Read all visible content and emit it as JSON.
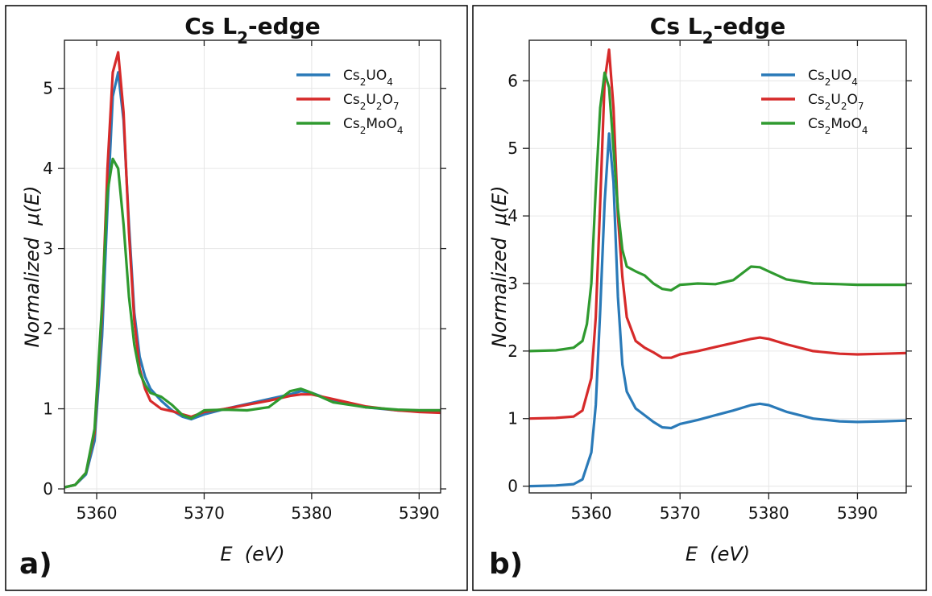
{
  "chart_data": [
    {
      "type": "line",
      "panel": "a)",
      "title": "Cs L₂-edge",
      "xlabel": "E  (eV)",
      "ylabel": "Normalized  μ(E)",
      "xlim": [
        5357,
        5392
      ],
      "ylim": [
        -0.05,
        5.6
      ],
      "xticks": [
        5360,
        5370,
        5380,
        5390
      ],
      "yticks": [
        0,
        1,
        2,
        3,
        4,
        5
      ],
      "grid": true,
      "legend": "top-right",
      "series": [
        {
          "name": "Cs₂UO₄",
          "color": "#2a7ab8",
          "x": [
            5357,
            5358,
            5359,
            5359.8,
            5360.5,
            5361,
            5361.5,
            5362,
            5362.5,
            5363,
            5363.5,
            5364,
            5364.5,
            5365,
            5366,
            5367,
            5368,
            5368.8,
            5370,
            5372,
            5374,
            5376,
            5378,
            5379,
            5380,
            5382,
            5385,
            5388,
            5390,
            5392
          ],
          "y": [
            0.02,
            0.05,
            0.18,
            0.6,
            1.9,
            3.5,
            4.9,
            5.2,
            4.6,
            3.3,
            2.2,
            1.65,
            1.4,
            1.25,
            1.1,
            0.98,
            0.9,
            0.87,
            0.93,
            1.0,
            1.06,
            1.12,
            1.18,
            1.22,
            1.2,
            1.1,
            1.02,
            0.98,
            0.97,
            0.97
          ]
        },
        {
          "name": "Cs₂U₂O₇",
          "color": "#d62a2a",
          "x": [
            5357,
            5358,
            5359,
            5359.8,
            5360.5,
            5361,
            5361.5,
            5362,
            5362.5,
            5363,
            5363.5,
            5364,
            5364.5,
            5365,
            5366,
            5367,
            5368,
            5368.8,
            5370,
            5372,
            5374,
            5376,
            5378,
            5379,
            5380,
            5382,
            5385,
            5388,
            5390,
            5392
          ],
          "y": [
            0.02,
            0.05,
            0.2,
            0.7,
            2.2,
            4.0,
            5.2,
            5.45,
            4.7,
            3.2,
            2.1,
            1.5,
            1.25,
            1.1,
            1.0,
            0.97,
            0.93,
            0.9,
            0.96,
            1.0,
            1.05,
            1.1,
            1.16,
            1.18,
            1.18,
            1.12,
            1.03,
            0.98,
            0.96,
            0.95
          ]
        },
        {
          "name": "Cs₂MoO₄",
          "color": "#2f9a2f",
          "x": [
            5357,
            5358,
            5359,
            5359.8,
            5360.5,
            5361,
            5361.5,
            5362,
            5362.5,
            5363,
            5363.5,
            5364,
            5364.5,
            5365,
            5366,
            5367,
            5368,
            5368.8,
            5370,
            5372,
            5374,
            5376,
            5377,
            5378,
            5379,
            5380,
            5382,
            5385,
            5388,
            5390,
            5392
          ],
          "y": [
            0.02,
            0.05,
            0.2,
            0.75,
            2.3,
            3.7,
            4.12,
            4.0,
            3.3,
            2.4,
            1.8,
            1.45,
            1.3,
            1.2,
            1.15,
            1.05,
            0.92,
            0.88,
            0.98,
            0.99,
            0.98,
            1.02,
            1.12,
            1.22,
            1.25,
            1.2,
            1.08,
            1.02,
            0.99,
            0.98,
            0.98
          ]
        }
      ]
    },
    {
      "type": "line",
      "panel": "b)",
      "title": "Cs L₂-edge",
      "xlabel": "E  (eV)",
      "ylabel": "Normalized  μ(E)",
      "xlim": [
        5353,
        5395.5
      ],
      "ylim": [
        -0.1,
        6.6
      ],
      "xticks": [
        5360,
        5370,
        5380,
        5390
      ],
      "yticks": [
        0,
        1,
        2,
        3,
        4,
        5,
        6
      ],
      "grid": true,
      "legend": "top-right",
      "series": [
        {
          "name": "Cs₂UO₄",
          "color": "#2a7ab8",
          "x": [
            5353,
            5356,
            5358,
            5359,
            5360,
            5360.5,
            5361,
            5361.5,
            5362,
            5362.5,
            5363,
            5363.5,
            5364,
            5365,
            5366,
            5367,
            5368,
            5369,
            5370,
            5372,
            5374,
            5376,
            5378,
            5379,
            5380,
            5382,
            5385,
            5388,
            5390,
            5393,
            5395.5
          ],
          "y": [
            0.0,
            0.01,
            0.03,
            0.1,
            0.5,
            1.2,
            2.6,
            4.2,
            5.22,
            4.5,
            2.8,
            1.8,
            1.4,
            1.15,
            1.05,
            0.95,
            0.87,
            0.86,
            0.92,
            0.98,
            1.05,
            1.12,
            1.2,
            1.22,
            1.2,
            1.1,
            1.0,
            0.96,
            0.95,
            0.96,
            0.97
          ]
        },
        {
          "name": "Cs₂U₂O₇",
          "color": "#d62a2a",
          "x": [
            5353,
            5356,
            5358,
            5359,
            5360,
            5360.5,
            5361,
            5361.5,
            5362,
            5362.5,
            5363,
            5363.5,
            5364,
            5365,
            5366,
            5367,
            5368,
            5369,
            5370,
            5372,
            5374,
            5376,
            5378,
            5379,
            5380,
            5382,
            5385,
            5388,
            5390,
            5393,
            5395.5
          ],
          "y": [
            1.0,
            1.01,
            1.03,
            1.12,
            1.6,
            2.5,
            4.2,
            6.0,
            6.46,
            5.6,
            4.0,
            3.1,
            2.5,
            2.15,
            2.05,
            1.98,
            1.9,
            1.9,
            1.95,
            2.0,
            2.06,
            2.12,
            2.18,
            2.2,
            2.18,
            2.1,
            2.0,
            1.96,
            1.95,
            1.96,
            1.97
          ]
        },
        {
          "name": "Cs₂MoO₄",
          "color": "#2f9a2f",
          "x": [
            5353,
            5356,
            5358,
            5359,
            5359.5,
            5360,
            5360.5,
            5361,
            5361.5,
            5362,
            5362.5,
            5363,
            5363.5,
            5364,
            5365,
            5366,
            5367,
            5368,
            5369,
            5370,
            5372,
            5374,
            5376,
            5377,
            5378,
            5379,
            5380,
            5382,
            5385,
            5388,
            5390,
            5393,
            5395.5
          ],
          "y": [
            2.0,
            2.01,
            2.05,
            2.15,
            2.4,
            3.0,
            4.4,
            5.6,
            6.12,
            5.9,
            5.0,
            4.1,
            3.5,
            3.25,
            3.18,
            3.12,
            3.0,
            2.92,
            2.9,
            2.98,
            3.0,
            2.99,
            3.05,
            3.15,
            3.25,
            3.24,
            3.18,
            3.06,
            3.0,
            2.99,
            2.98,
            2.98,
            2.98
          ]
        }
      ]
    }
  ]
}
